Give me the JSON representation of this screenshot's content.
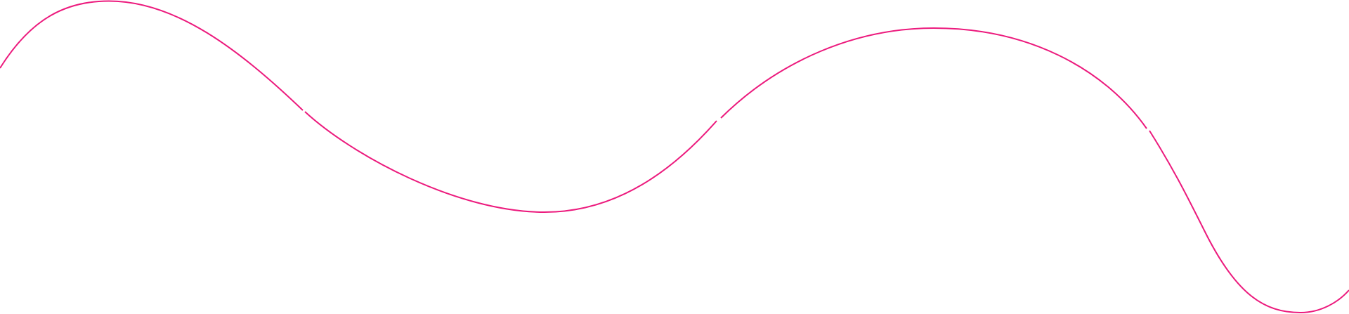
{
  "decoration": {
    "type": "wavy-line",
    "stroke_color": "#ec1a7d",
    "background_color": "#ffffff",
    "segment_count": 4
  }
}
